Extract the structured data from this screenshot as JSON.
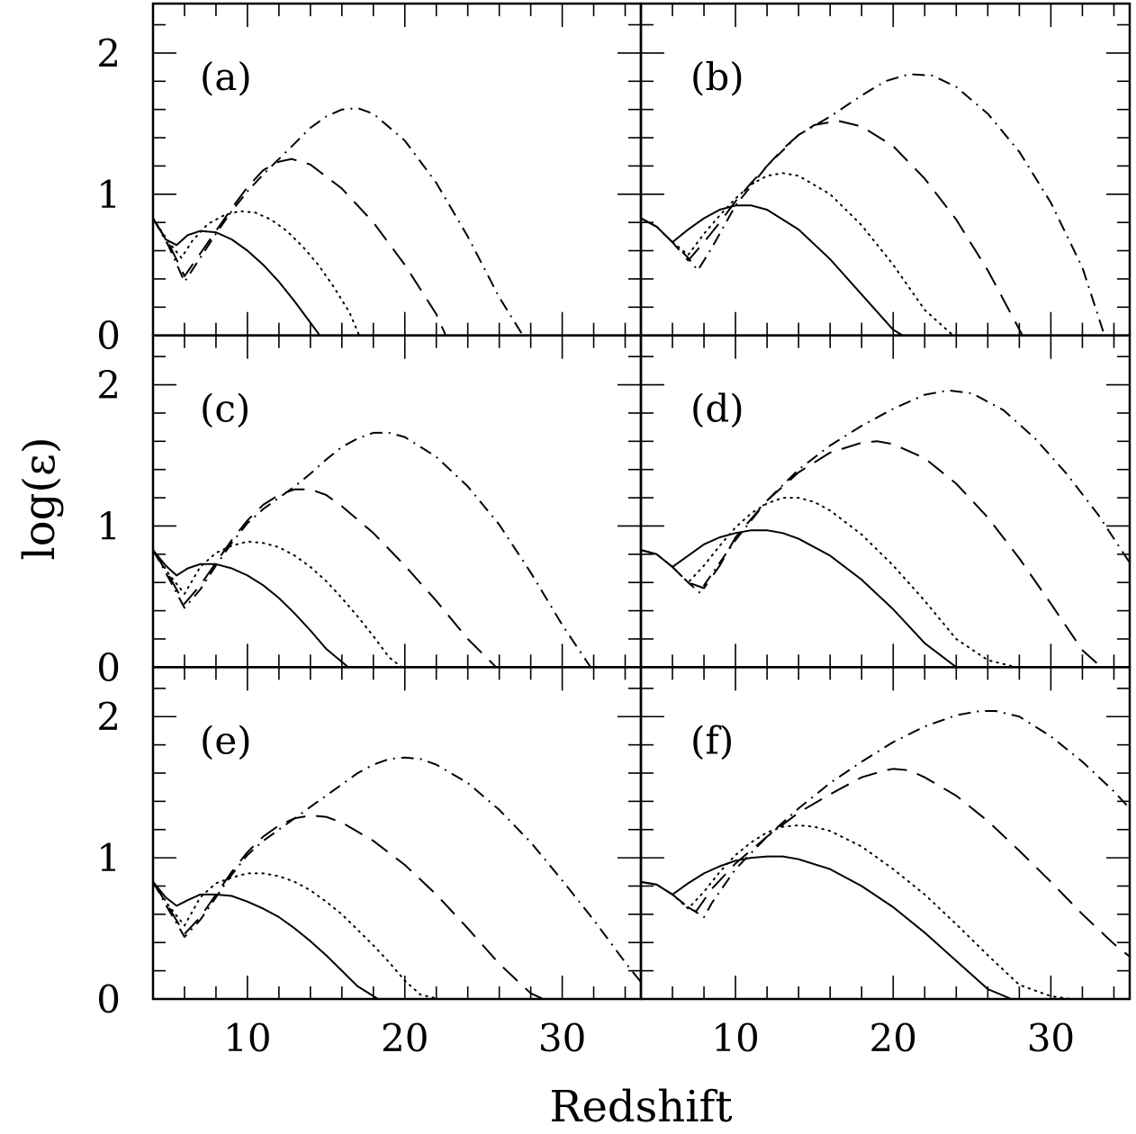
{
  "figure": {
    "xlabel": "Redshift",
    "ylabel": "log(ε)",
    "line_color": "#000000",
    "background": "#ffffff"
  },
  "chart_data": [
    {
      "type": "line",
      "panel": "(a)",
      "xlim": [
        4,
        35
      ],
      "ylim": [
        0,
        2.35
      ],
      "xticks": [
        "10",
        "20",
        "30"
      ],
      "yticks": [
        "0",
        "1",
        "2"
      ],
      "grid": false,
      "series": [
        {
          "style": "solid",
          "x": [
            4,
            4.8,
            5.5,
            6.2,
            7,
            8,
            9,
            10,
            11,
            12,
            13,
            14,
            14.6
          ],
          "y": [
            0.83,
            0.68,
            0.64,
            0.71,
            0.74,
            0.73,
            0.68,
            0.6,
            0.5,
            0.38,
            0.24,
            0.09,
            0
          ]
        },
        {
          "style": "dotted",
          "x": [
            4,
            5,
            5.8,
            6.5,
            7.5,
            8.5,
            9.5,
            10.5,
            11.5,
            12.5,
            13.5,
            14.5,
            15.5,
            16.5,
            17.1
          ],
          "y": [
            0.83,
            0.66,
            0.55,
            0.67,
            0.79,
            0.85,
            0.88,
            0.87,
            0.82,
            0.74,
            0.63,
            0.5,
            0.34,
            0.16,
            0
          ]
        },
        {
          "style": "dashed",
          "x": [
            4,
            5,
            6,
            7,
            8,
            9,
            10,
            11,
            12,
            12.8,
            14,
            16,
            18,
            20,
            22,
            22.6
          ],
          "y": [
            0.83,
            0.65,
            0.42,
            0.58,
            0.74,
            0.9,
            1.05,
            1.17,
            1.23,
            1.25,
            1.21,
            1.04,
            0.8,
            0.5,
            0.15,
            0
          ]
        },
        {
          "style": "dashdot",
          "x": [
            4,
            5,
            6,
            7,
            8,
            9,
            10,
            11,
            12,
            13,
            14,
            15,
            16,
            17,
            18,
            20,
            22,
            24,
            26,
            27.5
          ],
          "y": [
            0.83,
            0.63,
            0.38,
            0.55,
            0.72,
            0.88,
            1.02,
            1.14,
            1.25,
            1.36,
            1.47,
            1.55,
            1.6,
            1.61,
            1.57,
            1.38,
            1.08,
            0.7,
            0.27,
            0
          ]
        }
      ]
    },
    {
      "type": "line",
      "panel": "(b)",
      "xlim": [
        4,
        35
      ],
      "ylim": [
        0,
        2.35
      ],
      "xticks": [
        "10",
        "20",
        "30"
      ],
      "yticks": [
        "0",
        "1",
        "2"
      ],
      "grid": false,
      "series": [
        {
          "style": "solid",
          "x": [
            4,
            5,
            6,
            7,
            8,
            9,
            10,
            11,
            12,
            14,
            16,
            18,
            20,
            20.6
          ],
          "y": [
            0.83,
            0.77,
            0.66,
            0.75,
            0.83,
            0.89,
            0.92,
            0.92,
            0.89,
            0.75,
            0.54,
            0.29,
            0.04,
            0
          ]
        },
        {
          "style": "dotted",
          "x": [
            4,
            5,
            6,
            7,
            8,
            9,
            10,
            11,
            12,
            13,
            14,
            16,
            18,
            20,
            22,
            23.8
          ],
          "y": [
            0.83,
            0.77,
            0.66,
            0.57,
            0.72,
            0.85,
            0.97,
            1.07,
            1.13,
            1.15,
            1.13,
            1.0,
            0.78,
            0.5,
            0.18,
            0
          ]
        },
        {
          "style": "dashed",
          "x": [
            4,
            5,
            6,
            7,
            8,
            9,
            10,
            11,
            12,
            13,
            14,
            15,
            16.5,
            18,
            20,
            22,
            24,
            26,
            28.2
          ],
          "y": [
            0.83,
            0.77,
            0.66,
            0.53,
            0.66,
            0.8,
            0.95,
            1.08,
            1.2,
            1.32,
            1.42,
            1.49,
            1.52,
            1.48,
            1.34,
            1.11,
            0.82,
            0.46,
            0
          ]
        },
        {
          "style": "dashdot",
          "x": [
            4,
            5,
            6,
            7,
            7.6,
            8.5,
            10,
            12,
            14,
            16,
            18,
            19.5,
            21,
            22.5,
            24,
            26,
            28,
            30,
            32,
            33.4
          ],
          "y": [
            0.83,
            0.77,
            0.66,
            0.55,
            0.46,
            0.62,
            0.92,
            1.2,
            1.42,
            1.55,
            1.7,
            1.8,
            1.85,
            1.84,
            1.76,
            1.57,
            1.3,
            0.94,
            0.48,
            0
          ]
        }
      ]
    },
    {
      "type": "line",
      "panel": "(c)",
      "xlim": [
        4,
        35
      ],
      "ylim": [
        0,
        2.35
      ],
      "xticks": [
        "10",
        "20",
        "30"
      ],
      "yticks": [
        "0",
        "1",
        "2"
      ],
      "grid": false,
      "series": [
        {
          "style": "solid",
          "x": [
            4,
            4.8,
            5.5,
            6.2,
            7,
            8,
            9,
            10,
            11,
            12,
            13,
            14,
            15,
            16.4
          ],
          "y": [
            0.83,
            0.72,
            0.65,
            0.7,
            0.73,
            0.73,
            0.7,
            0.65,
            0.58,
            0.49,
            0.38,
            0.26,
            0.13,
            0
          ]
        },
        {
          "style": "dotted",
          "x": [
            4,
            5,
            6,
            7,
            8,
            9,
            10,
            11,
            12,
            13,
            14,
            15,
            16,
            17,
            18,
            19,
            19.8
          ],
          "y": [
            0.83,
            0.66,
            0.52,
            0.71,
            0.81,
            0.86,
            0.89,
            0.88,
            0.85,
            0.79,
            0.71,
            0.61,
            0.49,
            0.36,
            0.22,
            0.07,
            0
          ]
        },
        {
          "style": "dashed",
          "x": [
            4,
            5,
            6,
            7,
            8,
            9,
            10,
            11,
            12,
            13,
            14,
            15,
            16,
            18,
            20,
            22,
            24,
            25.8
          ],
          "y": [
            0.83,
            0.65,
            0.45,
            0.58,
            0.74,
            0.9,
            1.04,
            1.15,
            1.22,
            1.26,
            1.26,
            1.22,
            1.14,
            0.95,
            0.72,
            0.47,
            0.2,
            0
          ]
        },
        {
          "style": "dashdot",
          "x": [
            4,
            5,
            6,
            7,
            8,
            9,
            10,
            11,
            12,
            13,
            14,
            15,
            16,
            17,
            18,
            19,
            20,
            22,
            24,
            26,
            28,
            30,
            31.8
          ],
          "y": [
            0.83,
            0.63,
            0.42,
            0.55,
            0.72,
            0.88,
            1.02,
            1.12,
            1.2,
            1.28,
            1.37,
            1.47,
            1.56,
            1.62,
            1.66,
            1.66,
            1.63,
            1.49,
            1.28,
            1.01,
            0.67,
            0.3,
            0
          ]
        }
      ]
    },
    {
      "type": "line",
      "panel": "(d)",
      "xlim": [
        4,
        35
      ],
      "ylim": [
        0,
        2.35
      ],
      "xticks": [
        "10",
        "20",
        "30"
      ],
      "yticks": [
        "0",
        "1",
        "2"
      ],
      "grid": false,
      "series": [
        {
          "style": "solid",
          "x": [
            4,
            5,
            6,
            7,
            8,
            9,
            10,
            11,
            12,
            13,
            14,
            16,
            18,
            20,
            22,
            24
          ],
          "y": [
            0.83,
            0.8,
            0.71,
            0.79,
            0.87,
            0.92,
            0.95,
            0.97,
            0.97,
            0.95,
            0.91,
            0.79,
            0.62,
            0.41,
            0.17,
            0
          ]
        },
        {
          "style": "dotted",
          "x": [
            4,
            5,
            6,
            7,
            8,
            9,
            10,
            11,
            12,
            13,
            14,
            15,
            16,
            18,
            20,
            22,
            24,
            26,
            27.8
          ],
          "y": [
            0.83,
            0.8,
            0.71,
            0.6,
            0.72,
            0.86,
            0.99,
            1.09,
            1.16,
            1.2,
            1.2,
            1.17,
            1.11,
            0.94,
            0.72,
            0.47,
            0.2,
            0.05,
            0
          ]
        },
        {
          "style": "dashed",
          "x": [
            4,
            5,
            6,
            7,
            8,
            9,
            10,
            12,
            14,
            16,
            18,
            19,
            20,
            22,
            24,
            26,
            28,
            30,
            32,
            33.2
          ],
          "y": [
            0.83,
            0.8,
            0.71,
            0.6,
            0.56,
            0.72,
            0.92,
            1.18,
            1.38,
            1.52,
            1.59,
            1.6,
            1.58,
            1.48,
            1.3,
            1.06,
            0.77,
            0.45,
            0.12,
            0
          ]
        },
        {
          "style": "dashdot",
          "x": [
            4,
            5,
            6,
            7,
            7.7,
            8.5,
            10,
            12,
            14,
            16,
            18,
            20,
            22,
            23.5,
            25,
            27,
            29,
            31,
            33,
            35
          ],
          "y": [
            0.83,
            0.8,
            0.71,
            0.6,
            0.53,
            0.66,
            0.9,
            1.18,
            1.4,
            1.57,
            1.71,
            1.83,
            1.93,
            1.96,
            1.94,
            1.82,
            1.62,
            1.37,
            1.08,
            0.74
          ]
        }
      ]
    },
    {
      "type": "line",
      "panel": "(e)",
      "xlim": [
        4,
        35
      ],
      "ylim": [
        0,
        2.35
      ],
      "xticks": [
        "10",
        "20",
        "30"
      ],
      "yticks": [
        "0",
        "1",
        "2"
      ],
      "grid": false,
      "series": [
        {
          "style": "solid",
          "x": [
            4,
            4.8,
            5.5,
            6.2,
            7,
            8,
            9,
            10,
            11,
            12,
            13,
            14,
            15,
            16,
            17,
            18.3
          ],
          "y": [
            0.83,
            0.72,
            0.66,
            0.7,
            0.74,
            0.74,
            0.73,
            0.69,
            0.64,
            0.58,
            0.5,
            0.41,
            0.31,
            0.2,
            0.09,
            0
          ]
        },
        {
          "style": "dotted",
          "x": [
            4,
            5,
            6,
            7,
            8,
            9,
            10,
            11,
            12,
            13,
            14,
            15,
            16,
            17,
            18,
            19,
            20,
            21,
            22.2
          ],
          "y": [
            0.83,
            0.66,
            0.52,
            0.72,
            0.82,
            0.86,
            0.89,
            0.89,
            0.87,
            0.83,
            0.77,
            0.69,
            0.6,
            0.49,
            0.38,
            0.26,
            0.13,
            0.03,
            0
          ]
        },
        {
          "style": "dashed",
          "x": [
            4,
            5,
            6,
            7,
            8,
            9,
            10,
            11,
            12,
            13,
            14,
            15,
            16,
            18,
            20,
            22,
            24,
            26,
            28,
            28.8
          ],
          "y": [
            0.83,
            0.65,
            0.46,
            0.58,
            0.74,
            0.9,
            1.04,
            1.15,
            1.23,
            1.28,
            1.3,
            1.29,
            1.25,
            1.12,
            0.95,
            0.74,
            0.5,
            0.25,
            0.04,
            0
          ]
        },
        {
          "style": "dashdot",
          "x": [
            4,
            5,
            6,
            7,
            8,
            9,
            10,
            11,
            12,
            13,
            14,
            15,
            16,
            17,
            18,
            19,
            20,
            21,
            22,
            24,
            26,
            28,
            30,
            32,
            34,
            35
          ],
          "y": [
            0.83,
            0.63,
            0.44,
            0.56,
            0.72,
            0.88,
            1.02,
            1.12,
            1.2,
            1.28,
            1.36,
            1.44,
            1.52,
            1.6,
            1.66,
            1.7,
            1.71,
            1.7,
            1.66,
            1.53,
            1.34,
            1.11,
            0.84,
            0.56,
            0.26,
            0.12
          ]
        }
      ]
    },
    {
      "type": "line",
      "panel": "(f)",
      "xlim": [
        4,
        35
      ],
      "ylim": [
        0,
        2.35
      ],
      "xticks": [
        "10",
        "20",
        "30"
      ],
      "yticks": [
        "0",
        "1",
        "2"
      ],
      "grid": false,
      "series": [
        {
          "style": "solid",
          "x": [
            4,
            5,
            6,
            7,
            8,
            9,
            10,
            11,
            12,
            13,
            14,
            16,
            18,
            20,
            22,
            24,
            26,
            27.5
          ],
          "y": [
            0.83,
            0.81,
            0.74,
            0.82,
            0.89,
            0.94,
            0.98,
            1.0,
            1.01,
            1.01,
            0.99,
            0.92,
            0.8,
            0.65,
            0.47,
            0.27,
            0.07,
            0
          ]
        },
        {
          "style": "dotted",
          "x": [
            4,
            5,
            6,
            7,
            8,
            9,
            10,
            11,
            12,
            13,
            14,
            15,
            16,
            18,
            20,
            22,
            24,
            26,
            28,
            30,
            31.3
          ],
          "y": [
            0.83,
            0.81,
            0.74,
            0.64,
            0.76,
            0.9,
            1.02,
            1.11,
            1.18,
            1.22,
            1.23,
            1.22,
            1.19,
            1.08,
            0.92,
            0.74,
            0.53,
            0.31,
            0.1,
            0.02,
            0
          ]
        },
        {
          "style": "dashed",
          "x": [
            4,
            5,
            6,
            7,
            7.5,
            8.5,
            10,
            12,
            14,
            16,
            18,
            19.5,
            20,
            21,
            22,
            24,
            26,
            28,
            30,
            32,
            34,
            35
          ],
          "y": [
            0.83,
            0.81,
            0.74,
            0.65,
            0.62,
            0.78,
            0.96,
            1.15,
            1.32,
            1.45,
            1.57,
            1.62,
            1.63,
            1.62,
            1.57,
            1.44,
            1.26,
            1.05,
            0.83,
            0.6,
            0.39,
            0.3
          ]
        },
        {
          "style": "dashdot",
          "x": [
            4,
            5,
            6,
            7,
            8,
            8.5,
            10,
            12,
            14,
            16,
            18,
            20,
            22,
            24,
            25.5,
            26.5,
            28,
            30,
            32,
            34,
            35
          ],
          "y": [
            0.83,
            0.81,
            0.74,
            0.65,
            0.58,
            0.68,
            0.92,
            1.15,
            1.35,
            1.53,
            1.68,
            1.82,
            1.93,
            2.01,
            2.04,
            2.04,
            2.0,
            1.86,
            1.68,
            1.47,
            1.35
          ]
        }
      ]
    }
  ]
}
